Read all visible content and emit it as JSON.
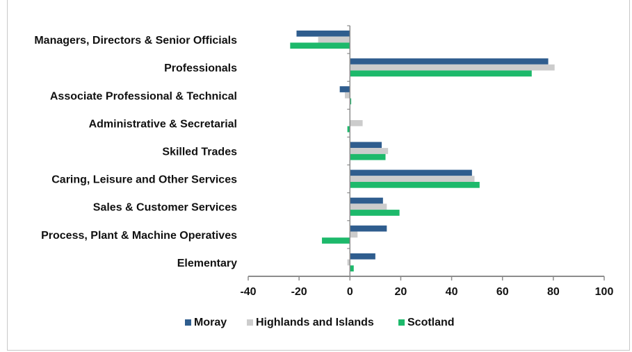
{
  "chart_data": {
    "type": "bar",
    "orientation": "horizontal",
    "categories": [
      "Managers, Directors & Senior Officials",
      "Professionals",
      "Associate Professional & Technical",
      "Administrative & Secretarial",
      "Skilled Trades",
      "Caring, Leisure and Other Services",
      "Sales & Customer Services",
      "Process, Plant & Machine Operatives",
      "Elementary"
    ],
    "series": [
      {
        "name": "Moray",
        "color": "#2f5d8e",
        "values": [
          -21,
          78,
          -4,
          0,
          12.5,
          48,
          13,
          14.5,
          10
        ]
      },
      {
        "name": "Highlands and Islands",
        "color": "#cccccc",
        "values": [
          -12.5,
          80.5,
          -2,
          5,
          15,
          49,
          14.5,
          3,
          -1
        ]
      },
      {
        "name": "Scotland",
        "color": "#1db96b",
        "values": [
          -23.5,
          71.5,
          0.5,
          -1,
          14,
          51,
          19.5,
          -11,
          1.5
        ]
      }
    ],
    "xlim": [
      -40,
      100
    ],
    "xticks": [
      "-40",
      "-20",
      "0",
      "20",
      "40",
      "60",
      "80",
      "100"
    ],
    "xtick_values": [
      -40,
      -20,
      0,
      20,
      40,
      60,
      80,
      100
    ],
    "grid": false,
    "legend": "bottom",
    "title": "",
    "xlabel": "",
    "ylabel": ""
  }
}
